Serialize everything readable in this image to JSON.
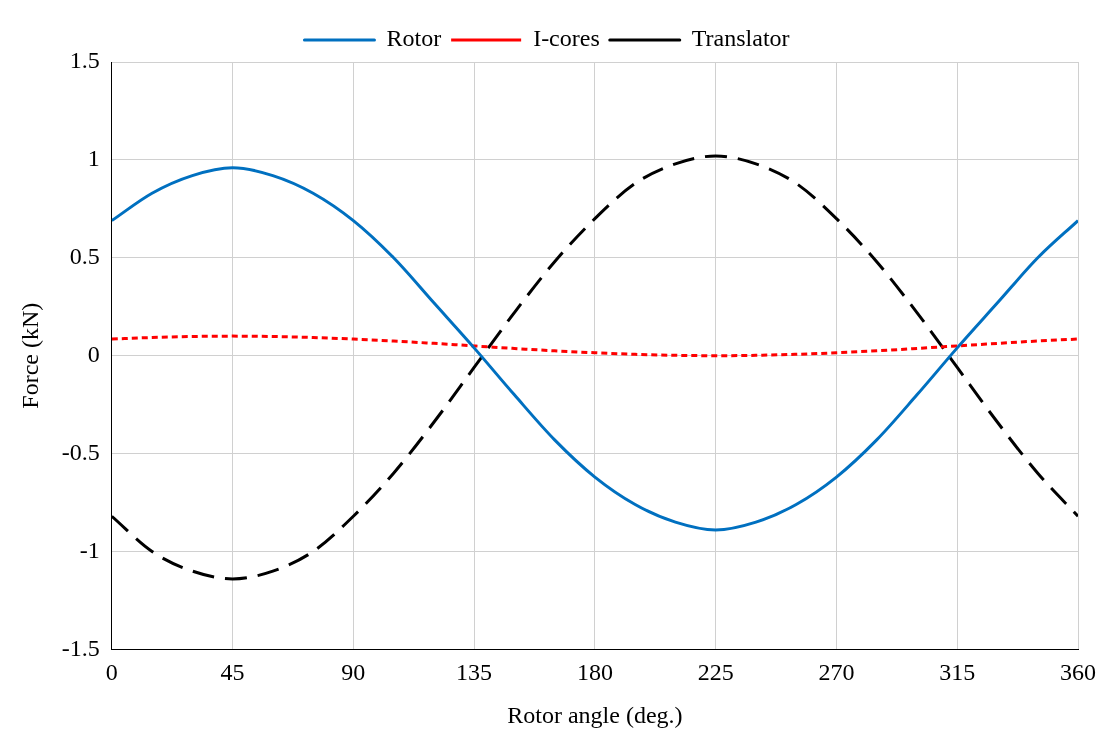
{
  "chart_data": {
    "type": "line",
    "xlabel": "Rotor angle (deg.)",
    "ylabel": "Force (kN)",
    "x": [
      0,
      15,
      30,
      45,
      60,
      75,
      90,
      105,
      120,
      135,
      150,
      165,
      180,
      195,
      210,
      225,
      240,
      255,
      270,
      285,
      300,
      315,
      330,
      345,
      360
    ],
    "xlim": [
      0,
      360
    ],
    "xticks": [
      0,
      45,
      90,
      135,
      180,
      225,
      270,
      315,
      360
    ],
    "ylim": [
      -1.5,
      1.5
    ],
    "yticks": [
      -1.5,
      -1,
      -0.5,
      0,
      0.5,
      1,
      1.5
    ],
    "grid": true,
    "legend": "top",
    "marker": "none",
    "series": [
      {
        "name": "Rotor",
        "color": "#0070c0",
        "line_style": "solid",
        "values": [
          0.69,
          0.83,
          0.92,
          0.96,
          0.92,
          0.83,
          0.69,
          0.5,
          0.27,
          0.04,
          -0.2,
          -0.43,
          -0.62,
          -0.76,
          -0.85,
          -0.89,
          -0.85,
          -0.76,
          -0.62,
          -0.43,
          -0.2,
          0.04,
          0.27,
          0.5,
          0.69
        ]
      },
      {
        "name": "I-cores",
        "color": "#ff0000",
        "line_style": "dotted",
        "values": [
          0.085,
          0.093,
          0.098,
          0.1,
          0.098,
          0.093,
          0.085,
          0.075,
          0.063,
          0.05,
          0.037,
          0.025,
          0.015,
          0.007,
          0.002,
          0,
          0.002,
          0.007,
          0.015,
          0.025,
          0.037,
          0.05,
          0.063,
          0.075,
          0.085
        ]
      },
      {
        "name": "Translator",
        "color": "#000000",
        "line_style": "dashed",
        "values": [
          -0.82,
          -1.0,
          -1.1,
          -1.14,
          -1.1,
          -1.0,
          -0.82,
          -0.6,
          -0.34,
          -0.06,
          0.22,
          0.48,
          0.7,
          0.88,
          0.98,
          1.02,
          0.98,
          0.88,
          0.7,
          0.48,
          0.22,
          -0.06,
          -0.34,
          -0.6,
          -0.82
        ]
      }
    ]
  }
}
